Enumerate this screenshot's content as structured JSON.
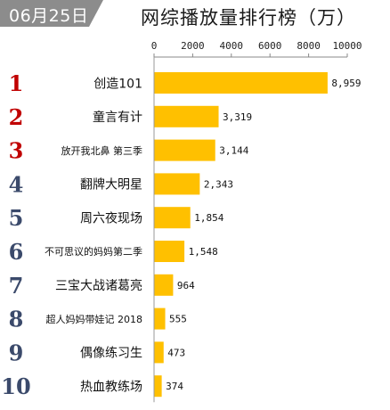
{
  "header": {
    "date": "06月25日",
    "title": "网综播放量排行榜（万）"
  },
  "colors": {
    "bar": "#FFC000",
    "rank_top3": "#C00000",
    "rank_rest": "#3B4A6B",
    "badge": "#8C8C8C"
  },
  "chart_data": {
    "type": "bar",
    "orientation": "horizontal",
    "title": "网综播放量排行榜（万）",
    "xlim": [
      0,
      10000
    ],
    "x_ticks": [
      "0",
      "2000",
      "4000",
      "6000",
      "8000",
      "10000"
    ],
    "ranks": [
      "1",
      "2",
      "3",
      "4",
      "5",
      "6",
      "7",
      "8",
      "9",
      "10"
    ],
    "categories": [
      "创造101",
      "童言有计",
      "放开我北鼻 第三季",
      "翻牌大明星",
      "周六夜现场",
      "不可思议的妈妈第二季",
      "三宝大战诸葛亮",
      "超人妈妈带娃记 2018",
      "偶像练习生",
      "热血教练场"
    ],
    "values": [
      8959,
      3319,
      3144,
      2343,
      1854,
      1548,
      964,
      555,
      473,
      374
    ],
    "value_labels": [
      "8,959",
      "3,319",
      "3,144",
      "2,343",
      "1,854",
      "1,548",
      "964",
      "555",
      "473",
      "374"
    ],
    "grid": false,
    "legend": "none"
  }
}
